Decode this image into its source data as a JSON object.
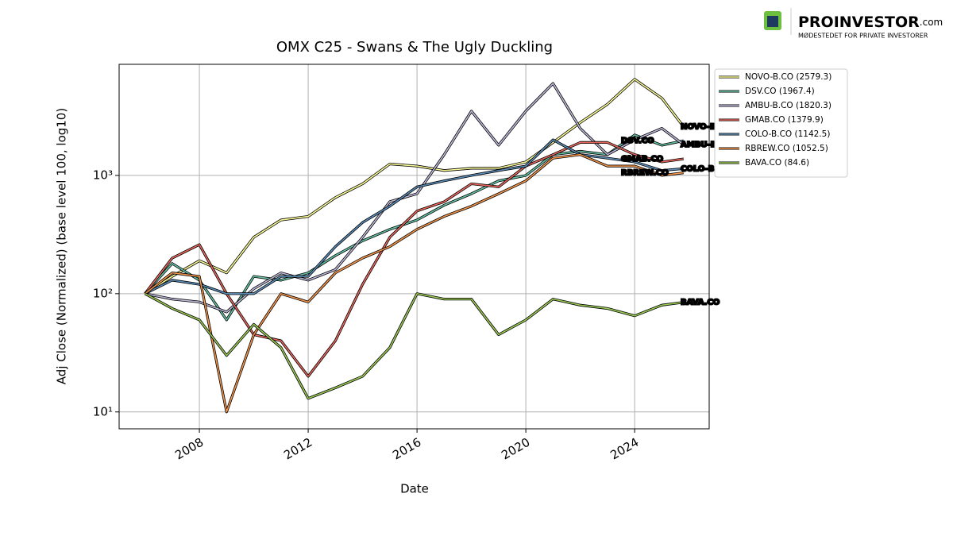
{
  "logo": {
    "name": "PROINVESTOR",
    "suffix": ".com",
    "tagline": "MØDESTEDET FOR PRIVATE INVESTORER"
  },
  "chart_data": {
    "type": "line",
    "title": "OMX C25 - Swans & The Ugly Duckling",
    "x_label": "Date",
    "y_label": "Adj Close (Normalized) (base level 100, log10)",
    "log_y": true,
    "grid": true,
    "legend": "outside-upper-right",
    "xlim": [
      2005.05,
      2026.74
    ],
    "xticks": [
      2008,
      2012,
      2016,
      2020,
      2024
    ],
    "ylim": [
      7.2,
      8700
    ],
    "yticks": [
      {
        "value": 10,
        "label": "10¹"
      },
      {
        "value": 100,
        "label": "10²"
      },
      {
        "value": 1000,
        "label": "10³"
      }
    ],
    "x": [
      2006,
      2007,
      2008,
      2009,
      2010,
      2011,
      2012,
      2013,
      2014,
      2015,
      2016,
      2017,
      2018,
      2019,
      2020,
      2021,
      2022,
      2023,
      2024,
      2025,
      2025.8
    ],
    "series": [
      {
        "name": "NOVO-B.CO (2579.3)",
        "label": "NOVO-B.CO",
        "color": "#ffff99",
        "values": [
          100,
          140,
          190,
          150,
          300,
          420,
          450,
          650,
          850,
          1250,
          1200,
          1100,
          1150,
          1150,
          1300,
          1900,
          2800,
          4000,
          6500,
          4500,
          2579.3
        ]
      },
      {
        "name": "DSV.CO (1967.4)",
        "label": "DSV.CO",
        "color": "#66c2a5",
        "values": [
          100,
          180,
          130,
          60,
          140,
          130,
          150,
          210,
          280,
          350,
          420,
          560,
          700,
          900,
          1000,
          1500,
          1600,
          1500,
          2200,
          1800,
          1967.4
        ]
      },
      {
        "name": "AMBU-B.CO (1820.3)",
        "label": "AMBU-B.CO",
        "color": "#bebada",
        "values": [
          100,
          90,
          85,
          70,
          110,
          150,
          130,
          160,
          300,
          600,
          700,
          1500,
          3500,
          1800,
          3500,
          6000,
          2500,
          1500,
          2000,
          2500,
          1820.3
        ]
      },
      {
        "name": "GMAB.CO (1379.9)",
        "label": "GMAB.CO",
        "color": "#e8665c",
        "values": [
          100,
          200,
          260,
          100,
          45,
          40,
          20,
          40,
          120,
          300,
          500,
          600,
          850,
          800,
          1200,
          1500,
          1900,
          1900,
          1500,
          1300,
          1379.9
        ]
      },
      {
        "name": "COLO-B.CO (1142.5)",
        "label": "COLO-B.CO",
        "color": "#5b8db8",
        "values": [
          100,
          130,
          120,
          100,
          100,
          140,
          140,
          250,
          400,
          550,
          800,
          900,
          1000,
          1100,
          1200,
          2000,
          1500,
          1400,
          1300,
          1100,
          1142.5
        ]
      },
      {
        "name": "RBREW.CO (1052.5)",
        "label": "RBREW.CO",
        "color": "#f5964a",
        "values": [
          100,
          150,
          140,
          10,
          45,
          100,
          85,
          150,
          200,
          250,
          350,
          450,
          550,
          700,
          900,
          1400,
          1500,
          1200,
          1200,
          1000,
          1052.5
        ]
      },
      {
        "name": "BAVA.CO (84.6)",
        "label": "BAVA.CO",
        "color": "#9ccc55",
        "values": [
          100,
          75,
          60,
          30,
          55,
          35,
          13,
          16,
          20,
          35,
          100,
          90,
          90,
          45,
          60,
          90,
          80,
          75,
          65,
          80,
          84.6
        ]
      }
    ]
  }
}
